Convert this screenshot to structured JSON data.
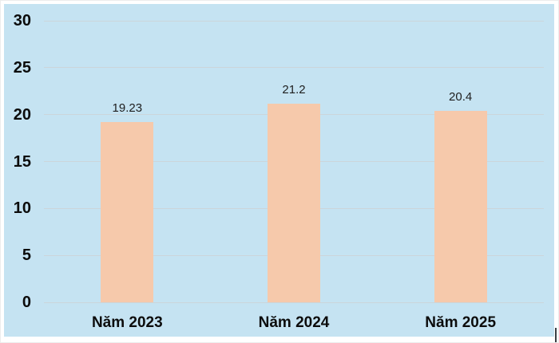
{
  "chart_data": {
    "type": "bar",
    "title": "",
    "xlabel": "",
    "ylabel": "",
    "categories": [
      "Năm 2023",
      "Năm 2024",
      "Năm 2025"
    ],
    "values": [
      19.23,
      21.2,
      20.4
    ],
    "value_labels": [
      "19.23",
      "21.2",
      "20.4"
    ],
    "ylim": [
      0,
      30
    ],
    "yticks": [
      0,
      5,
      10,
      15,
      20,
      25,
      30
    ],
    "grid": true,
    "legend_position": "none",
    "colors": {
      "panel_background": "#c5e3f2",
      "bar_fill": "#f6c9ab",
      "gridline": "#cbd5da",
      "axis_tick_label": "#0c0c0c",
      "category_label": "#0c0c0c",
      "value_label": "#1e1e1e"
    }
  }
}
